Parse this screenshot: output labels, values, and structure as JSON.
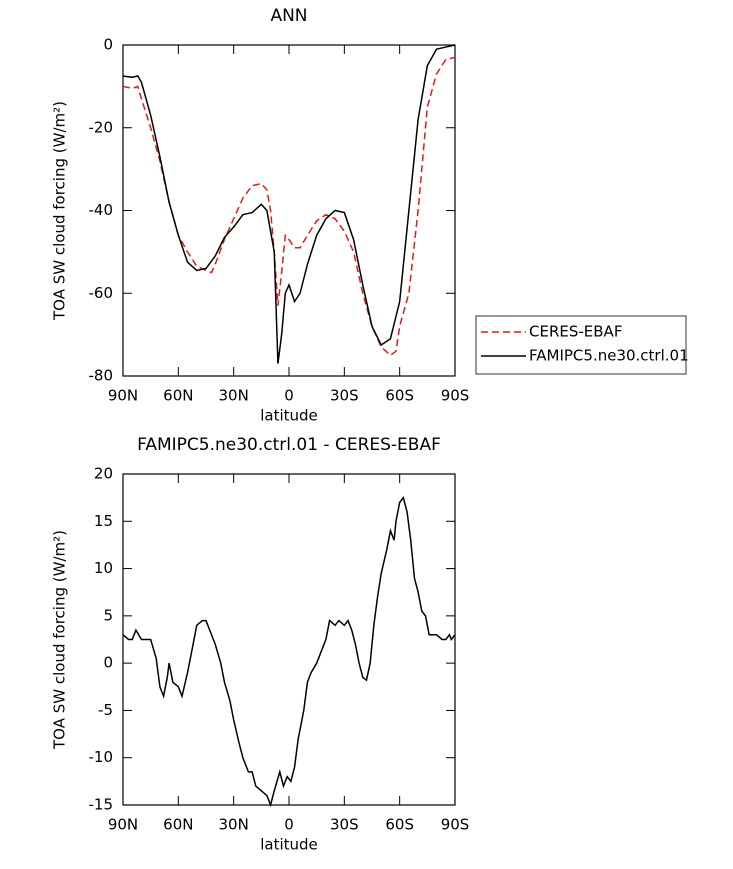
{
  "chart_data": [
    {
      "type": "line",
      "title": "ANN",
      "x_label": "latitude",
      "y_label": "TOA SW cloud forcing (W/m²)",
      "xlim": [
        90,
        -90
      ],
      "ylim": [
        -80,
        0
      ],
      "xticks": [
        {
          "value": 90,
          "label": "90N"
        },
        {
          "value": 60,
          "label": "60N"
        },
        {
          "value": 30,
          "label": "30N"
        },
        0,
        {
          "value": -30,
          "label": "30S"
        },
        {
          "value": -60,
          "label": "60S"
        },
        {
          "value": -90,
          "label": "90S"
        }
      ],
      "yticks": [
        -80,
        -60,
        -40,
        -20,
        0
      ],
      "legend": "outside-right",
      "series": [
        {
          "name": "CERES-EBAF",
          "color": "#e41a1c",
          "linestyle": "dashed",
          "x": [
            90,
            85,
            82,
            80,
            75,
            70,
            65,
            60,
            55,
            50,
            45,
            42,
            40,
            35,
            30,
            25,
            20,
            15,
            12,
            10,
            8,
            6,
            4,
            2,
            0,
            -3,
            -6,
            -10,
            -15,
            -20,
            -25,
            -30,
            -35,
            -40,
            -45,
            -50,
            -55,
            -58,
            -60,
            -65,
            -70,
            -75,
            -80,
            -85,
            -90
          ],
          "values": [
            -10,
            -10.5,
            -10,
            -13,
            -20,
            -28,
            -38,
            -46,
            -50,
            -53.5,
            -54.5,
            -55,
            -53,
            -47,
            -42,
            -37,
            -34,
            -33.5,
            -35,
            -40,
            -50,
            -63,
            -55,
            -46,
            -47,
            -49,
            -49,
            -46,
            -42.5,
            -41,
            -42,
            -45,
            -50,
            -60,
            -68,
            -73,
            -75,
            -74,
            -68,
            -60,
            -40,
            -15,
            -7,
            -3.5,
            -3
          ]
        },
        {
          "name": "FAMIPC5.ne30.ctrl.01",
          "color": "#000000",
          "linestyle": "solid",
          "x": [
            90,
            85,
            82,
            80,
            75,
            70,
            65,
            60,
            55,
            50,
            45,
            40,
            35,
            30,
            25,
            20,
            15,
            12,
            8,
            6,
            4,
            2,
            0,
            -3,
            -6,
            -10,
            -15,
            -20,
            -25,
            -30,
            -35,
            -40,
            -45,
            -50,
            -55,
            -60,
            -65,
            -70,
            -75,
            -80,
            -85,
            -90
          ],
          "values": [
            -7.5,
            -7.8,
            -7.5,
            -9,
            -17,
            -27,
            -38,
            -46,
            -52.5,
            -54.5,
            -54,
            -51,
            -46.5,
            -44,
            -41,
            -40.5,
            -38.5,
            -40,
            -50,
            -77,
            -70,
            -60,
            -58,
            -62,
            -60,
            -53,
            -46,
            -42,
            -40,
            -40.5,
            -47,
            -58,
            -68,
            -72.5,
            -71,
            -62,
            -40,
            -18,
            -5,
            -1,
            -0.5,
            0
          ]
        }
      ]
    },
    {
      "type": "line",
      "title": "FAMIPC5.ne30.ctrl.01 - CERES-EBAF",
      "x_label": "latitude",
      "y_label": "TOA SW cloud forcing (W/m²)",
      "xlim": [
        90,
        -90
      ],
      "ylim": [
        -15,
        20
      ],
      "xticks": [
        {
          "value": 90,
          "label": "90N"
        },
        {
          "value": 60,
          "label": "60N"
        },
        {
          "value": 30,
          "label": "30N"
        },
        0,
        {
          "value": -30,
          "label": "30S"
        },
        {
          "value": -60,
          "label": "60S"
        },
        {
          "value": -90,
          "label": "90S"
        }
      ],
      "yticks": [
        -15,
        -10,
        -5,
        0,
        5,
        10,
        15,
        20
      ],
      "color": "#000000",
      "x": [
        90,
        87,
        85,
        83,
        80,
        77,
        75,
        72,
        70,
        68,
        66,
        65,
        63,
        60,
        58,
        55,
        52,
        50,
        47,
        45,
        42,
        40,
        37,
        35,
        32,
        30,
        27,
        25,
        22,
        20,
        18,
        15,
        12,
        10,
        8,
        5,
        3,
        1,
        -1,
        -3,
        -5,
        -8,
        -10,
        -12,
        -15,
        -17,
        -20,
        -22,
        -25,
        -27,
        -30,
        -32,
        -34,
        -36,
        -38,
        -40,
        -42,
        -44,
        -46,
        -48,
        -50,
        -53,
        -55,
        -57,
        -58,
        -60,
        -62,
        -64,
        -66,
        -68,
        -70,
        -72,
        -74,
        -76,
        -78,
        -80,
        -83,
        -85,
        -87,
        -88,
        -90
      ],
      "values": [
        3,
        2.5,
        2.5,
        3.5,
        2.5,
        2.5,
        2.5,
        0.5,
        -2.5,
        -3.5,
        -1.5,
        0,
        -2,
        -2.5,
        -3.5,
        -1,
        2,
        4,
        4.5,
        4.5,
        3,
        2,
        0,
        -2,
        -4,
        -6,
        -8.5,
        -10,
        -11.5,
        -11.5,
        -13,
        -13.5,
        -14,
        -15,
        -13.5,
        -11.5,
        -13,
        -12,
        -12.5,
        -11,
        -8,
        -5,
        -2,
        -1,
        0,
        1,
        2.5,
        4.5,
        4,
        4.5,
        4,
        4.5,
        3.5,
        2,
        0,
        -1.5,
        -1.8,
        0,
        4,
        7,
        9.5,
        12,
        14,
        13,
        15,
        17,
        17.5,
        16,
        13,
        9,
        7.5,
        5.5,
        5,
        3,
        3,
        3,
        2.5,
        2.5,
        3,
        2.5,
        3
      ]
    }
  ]
}
